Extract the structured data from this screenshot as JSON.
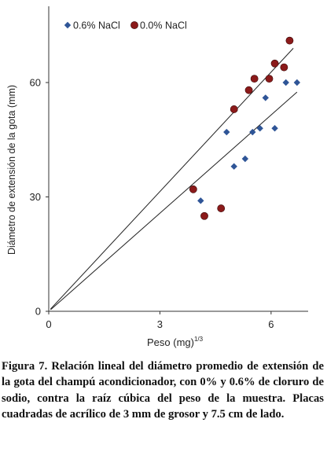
{
  "chart_data": {
    "type": "scatter",
    "xlabel": "Peso (mg)",
    "xlabel_sup": "1/3",
    "ylabel": "Diámetro de extensión de la gota (mm)",
    "xlim": [
      0,
      7
    ],
    "ylim": [
      0,
      80
    ],
    "xticks": [
      0,
      3,
      6
    ],
    "yticks": [
      0,
      30,
      60
    ],
    "legend_position": "top-left",
    "series": [
      {
        "name": "0.6% NaCl",
        "marker": "diamond",
        "color": "#2f5597",
        "x": [
          4.1,
          4.8,
          5.0,
          5.3,
          5.5,
          5.7,
          5.85,
          6.1,
          6.4,
          6.7
        ],
        "y": [
          29,
          47,
          38,
          40,
          47,
          48,
          56,
          48,
          60,
          60
        ]
      },
      {
        "name": "0.0% NaCl",
        "marker": "circle",
        "color": "#8b1a1a",
        "x": [
          3.9,
          4.2,
          4.65,
          5.0,
          5.4,
          5.55,
          5.95,
          6.1,
          6.35,
          6.5
        ],
        "y": [
          32,
          25,
          27,
          53,
          58,
          61,
          61,
          65,
          64,
          71
        ]
      }
    ],
    "fit_lines": [
      {
        "series": "0.0% NaCl",
        "x": [
          0.05,
          6.6
        ],
        "y": [
          0.6,
          69
        ]
      },
      {
        "series": "0.6% NaCl",
        "x": [
          0.05,
          6.7
        ],
        "y": [
          0.4,
          57.5
        ]
      }
    ]
  },
  "caption": {
    "label": "Figura 7.",
    "text": "Relación lineal del diámetro promedio de extensión de la gota del champú acondicionador, con 0% y 0.6% de cloruro de sodio, contra la raíz cúbica del peso de la muestra. Placas cuadradas de acrílico de 3 mm de grosor y 7.5 cm de lado."
  }
}
